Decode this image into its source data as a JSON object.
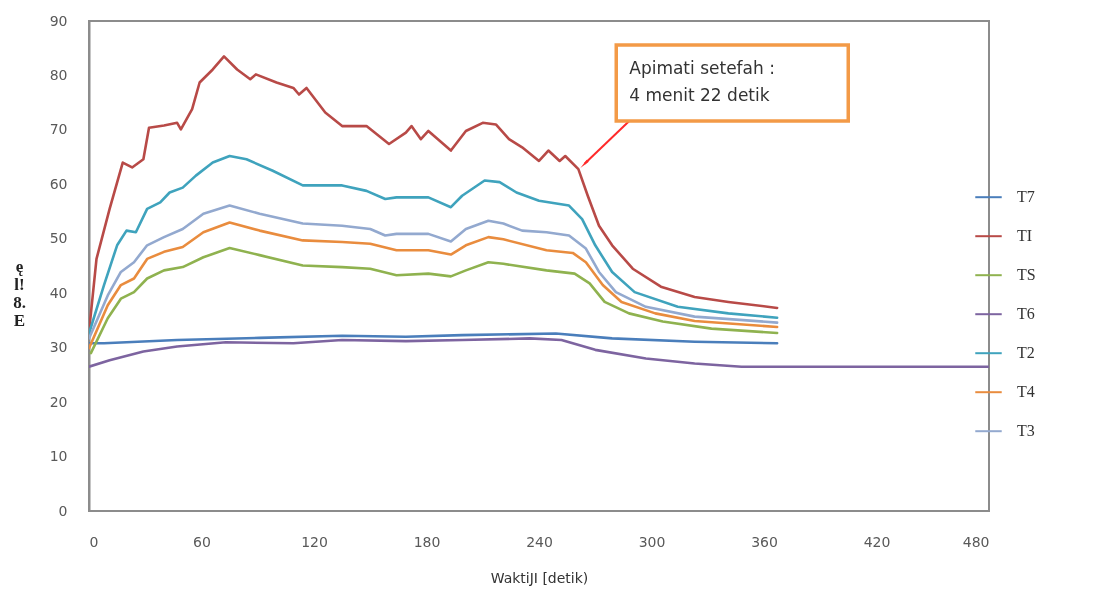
{
  "chart_data": {
    "type": "line",
    "xlabel": "WaktiJI [detik)",
    "ylabel": "ę\nl!\n8.\nE",
    "xlim": [
      0,
      480
    ],
    "xticks": [
      0,
      60,
      120,
      180,
      240,
      300,
      360,
      420,
      480
    ],
    "ylim": [
      0,
      90
    ],
    "yticks": [
      0,
      10,
      20,
      30,
      40,
      50,
      60,
      70,
      80,
      90
    ],
    "legend": "right",
    "annotations": [
      {
        "text": "Apimati setefah :\n4 menit 22 detik",
        "x": 262,
        "y": 63
      }
    ],
    "series": [
      {
        "name": "T7",
        "color": "#4a7ebb",
        "x": [
          0,
          8,
          47,
          91,
          135,
          169,
          199,
          249,
          279,
          323,
          367
        ],
        "values": [
          30.8,
          30.8,
          31.4,
          31.8,
          32.2,
          32.0,
          32.3,
          32.6,
          31.7,
          31.1,
          30.8
        ]
      },
      {
        "name": "TI",
        "color": "#b84a47",
        "x": [
          0,
          4,
          11,
          18,
          23,
          29,
          32,
          40,
          47,
          49,
          55,
          59,
          66,
          72,
          79,
          86,
          89,
          100,
          109,
          112,
          116,
          126,
          135,
          148,
          160,
          169,
          172,
          177,
          181,
          193,
          201,
          210,
          217,
          224,
          231,
          240,
          245,
          251,
          254,
          261,
          266,
          272,
          279,
          290,
          305,
          323,
          341,
          367
        ],
        "values": [
          32.9,
          46.3,
          55.5,
          64.0,
          63.1,
          64.6,
          70.4,
          70.8,
          71.3,
          70.1,
          73.8,
          78.7,
          81.1,
          83.5,
          81.1,
          79.3,
          80.2,
          78.7,
          77.7,
          76.5,
          77.7,
          73.2,
          70.7,
          70.7,
          67.4,
          69.5,
          70.7,
          68.3,
          69.8,
          66.2,
          69.8,
          71.3,
          71.0,
          68.3,
          66.8,
          64.3,
          66.2,
          64.3,
          65.2,
          62.8,
          57.9,
          52.4,
          48.8,
          44.5,
          41.2,
          39.3,
          38.4,
          37.3
        ]
      },
      {
        "name": "TS",
        "color": "#8fb24f",
        "x": [
          1,
          10,
          17,
          24,
          31,
          40,
          50,
          61,
          75,
          91,
          114,
          135,
          150,
          164,
          181,
          193,
          201,
          213,
          221,
          244,
          259,
          267,
          275,
          288,
          306,
          332,
          367
        ],
        "values": [
          29.0,
          35.4,
          39.0,
          40.2,
          42.7,
          44.2,
          44.8,
          46.6,
          48.3,
          47.0,
          45.1,
          44.8,
          44.5,
          43.3,
          43.6,
          43.1,
          44.2,
          45.7,
          45.4,
          44.2,
          43.6,
          41.8,
          38.4,
          36.3,
          34.8,
          33.5,
          32.7
        ]
      },
      {
        "name": "T6",
        "color": "#7d64a0",
        "x": [
          0,
          11,
          29,
          47,
          73,
          109,
          135,
          169,
          199,
          235,
          252,
          270,
          297,
          323,
          348,
          370,
          480
        ],
        "values": [
          26.5,
          27.7,
          29.3,
          30.2,
          31.0,
          30.8,
          31.4,
          31.2,
          31.4,
          31.7,
          31.4,
          29.6,
          28.0,
          27.1,
          26.5,
          26.5,
          26.5
        ]
      },
      {
        "name": "T2",
        "color": "#3fa3bd",
        "x": [
          0,
          8,
          15,
          20,
          25,
          31,
          38,
          43,
          50,
          57,
          66,
          75,
          84,
          98,
          114,
          135,
          148,
          158,
          164,
          181,
          193,
          199,
          211,
          219,
          228,
          240,
          256,
          263,
          270,
          279,
          291,
          314,
          341,
          367
        ],
        "values": [
          32.6,
          41.5,
          48.8,
          51.5,
          51.2,
          55.5,
          56.7,
          58.5,
          59.4,
          61.6,
          64.0,
          65.2,
          64.6,
          62.5,
          59.8,
          59.8,
          58.8,
          57.3,
          57.6,
          57.6,
          55.8,
          57.9,
          60.7,
          60.4,
          58.5,
          57.0,
          56.1,
          53.6,
          48.8,
          43.9,
          40.2,
          37.5,
          36.3,
          35.5
        ]
      },
      {
        "name": "T4",
        "color": "#e98c3e",
        "x": [
          0,
          10,
          17,
          24,
          31,
          40,
          50,
          61,
          75,
          91,
          114,
          135,
          150,
          164,
          181,
          193,
          201,
          213,
          221,
          244,
          258,
          265,
          274,
          284,
          302,
          323,
          367
        ],
        "values": [
          29.9,
          37.8,
          41.5,
          42.7,
          46.3,
          47.6,
          48.5,
          51.2,
          53.0,
          51.5,
          49.7,
          49.4,
          49.1,
          47.9,
          47.9,
          47.1,
          48.8,
          50.3,
          49.9,
          47.9,
          47.4,
          45.7,
          41.5,
          38.4,
          36.3,
          34.9,
          33.8
        ]
      },
      {
        "name": "T3",
        "color": "#93a9cf",
        "x": [
          0,
          10,
          17,
          24,
          31,
          40,
          50,
          61,
          75,
          91,
          114,
          135,
          150,
          158,
          164,
          181,
          193,
          201,
          213,
          221,
          231,
          244,
          256,
          265,
          272,
          281,
          297,
          323,
          367
        ],
        "values": [
          31.7,
          39.6,
          43.9,
          45.7,
          48.8,
          50.3,
          51.8,
          54.6,
          56.1,
          54.6,
          52.8,
          52.4,
          51.8,
          50.6,
          50.9,
          50.9,
          49.5,
          51.8,
          53.3,
          52.8,
          51.5,
          51.2,
          50.6,
          48.2,
          43.9,
          40.2,
          37.5,
          35.7,
          34.6
        ]
      }
    ]
  }
}
